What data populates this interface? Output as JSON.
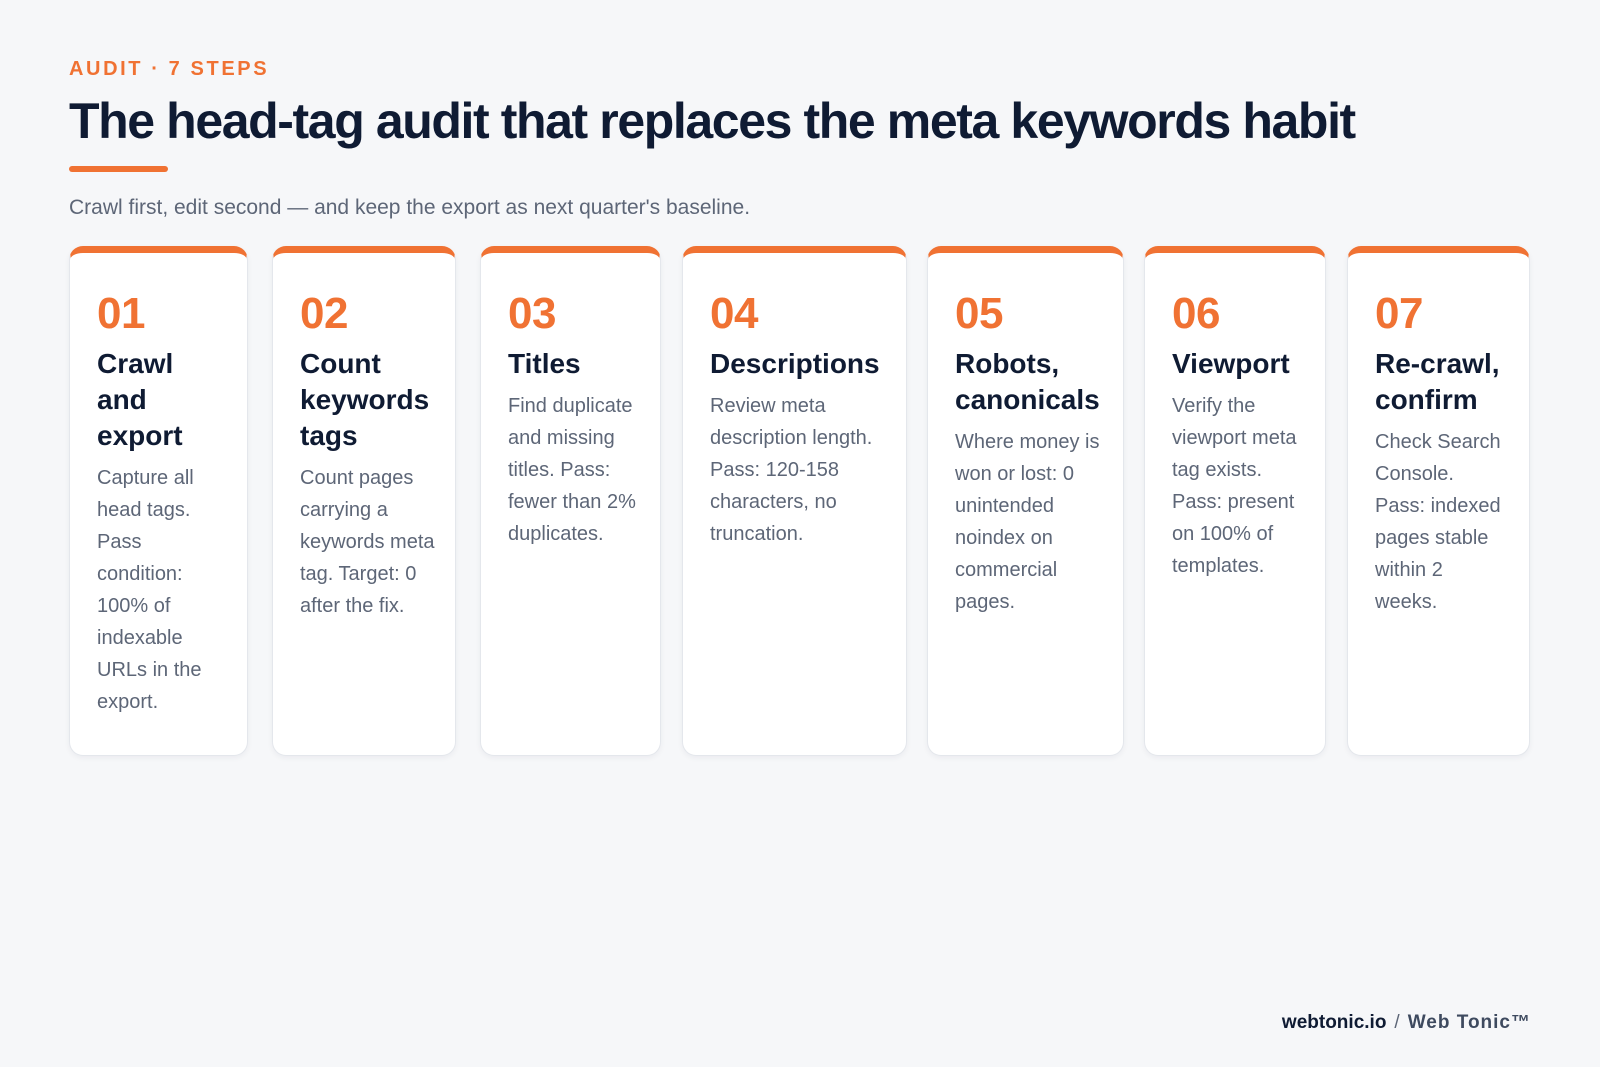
{
  "header": {
    "eyebrow": "AUDIT · 7 STEPS",
    "title": "The head-tag audit that replaces the meta keywords habit",
    "subtitle": "Crawl first, edit second — and keep the export as next quarter's baseline."
  },
  "colors": {
    "accent": "#f07233",
    "heading": "#0f1b33",
    "body_text": "#5d6677",
    "background": "#f6f7f9",
    "card": "#ffffff"
  },
  "steps": [
    {
      "number": "01",
      "title": "Crawl and export",
      "body": "Capture all head tags. Pass condition: 100% of indexable URLs in the export."
    },
    {
      "number": "02",
      "title": "Count keywords tags",
      "body": "Count pages carrying a keywords meta tag. Target: 0 after the fix."
    },
    {
      "number": "03",
      "title": "Titles",
      "body": "Find duplicate and missing titles. Pass: fewer than 2% duplicates."
    },
    {
      "number": "04",
      "title": "Descriptions",
      "body": "Review meta description length. Pass: 120-158 characters, no truncation."
    },
    {
      "number": "05",
      "title": "Robots, canonicals",
      "body": "Where money is won or lost: 0 unintended noindex on commercial pages."
    },
    {
      "number": "06",
      "title": "Viewport",
      "body": "Verify the viewport meta tag exists. Pass: present on 100% of templates."
    },
    {
      "number": "07",
      "title": "Re-crawl, confirm",
      "body": "Check Search Console. Pass: indexed pages stable within 2 weeks."
    }
  ],
  "footer": {
    "domain": "webtonic.io",
    "separator": "/",
    "brand": "Web Tonic™"
  }
}
